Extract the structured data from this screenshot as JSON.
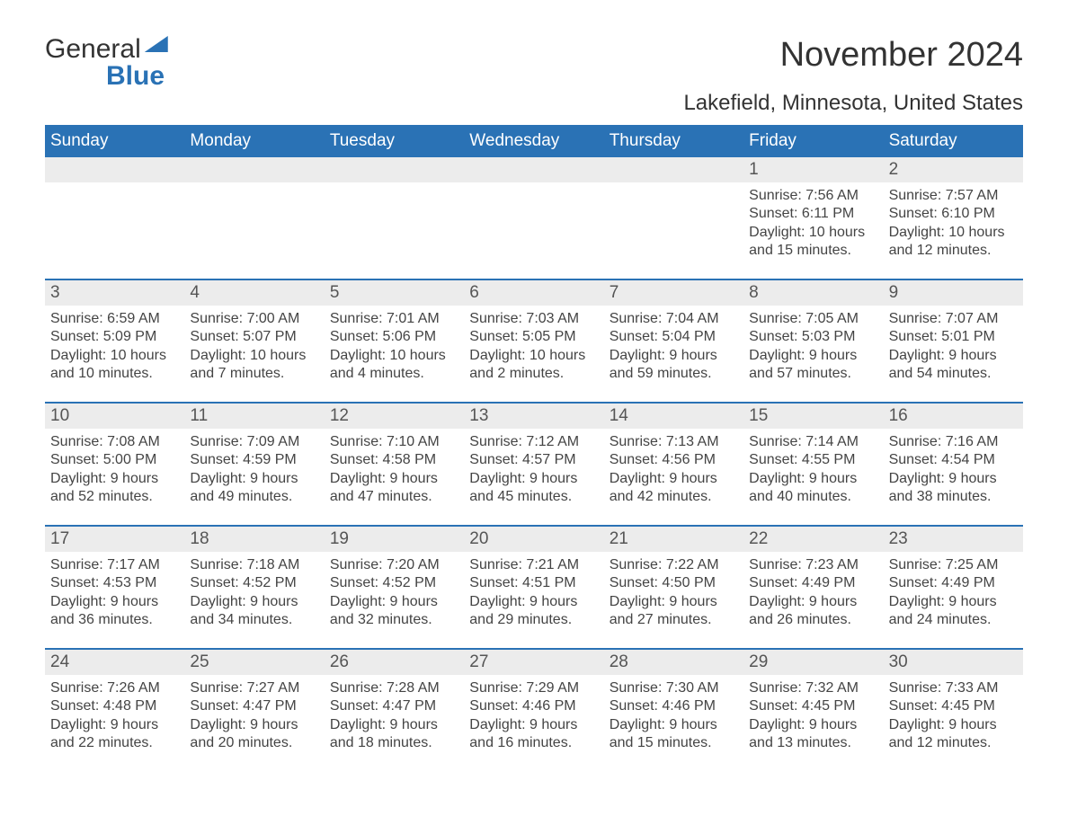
{
  "colors": {
    "header_bg": "#2a72b5",
    "header_text": "#ffffff",
    "daynum_bg": "#ececec",
    "week_border": "#2a72b5",
    "body_text": "#444444",
    "title_text": "#333333",
    "page_bg": "#ffffff",
    "logo_blue": "#2a72b5"
  },
  "typography": {
    "month_title_fontsize_pt": 29,
    "location_fontsize_pt": 18,
    "weekday_fontsize_pt": 14,
    "daynum_fontsize_pt": 14,
    "body_fontsize_pt": 12,
    "font_family": "Arial"
  },
  "logo": {
    "line1": "General",
    "line2": "Blue"
  },
  "title": "November 2024",
  "location": "Lakefield, Minnesota, United States",
  "weekdays": [
    "Sunday",
    "Monday",
    "Tuesday",
    "Wednesday",
    "Thursday",
    "Friday",
    "Saturday"
  ],
  "weeks": [
    [
      {
        "empty": true
      },
      {
        "empty": true
      },
      {
        "empty": true
      },
      {
        "empty": true
      },
      {
        "empty": true
      },
      {
        "num": "1",
        "sunrise": "Sunrise: 7:56 AM",
        "sunset": "Sunset: 6:11 PM",
        "day1": "Daylight: 10 hours",
        "day2": "and 15 minutes."
      },
      {
        "num": "2",
        "sunrise": "Sunrise: 7:57 AM",
        "sunset": "Sunset: 6:10 PM",
        "day1": "Daylight: 10 hours",
        "day2": "and 12 minutes."
      }
    ],
    [
      {
        "num": "3",
        "sunrise": "Sunrise: 6:59 AM",
        "sunset": "Sunset: 5:09 PM",
        "day1": "Daylight: 10 hours",
        "day2": "and 10 minutes."
      },
      {
        "num": "4",
        "sunrise": "Sunrise: 7:00 AM",
        "sunset": "Sunset: 5:07 PM",
        "day1": "Daylight: 10 hours",
        "day2": "and 7 minutes."
      },
      {
        "num": "5",
        "sunrise": "Sunrise: 7:01 AM",
        "sunset": "Sunset: 5:06 PM",
        "day1": "Daylight: 10 hours",
        "day2": "and 4 minutes."
      },
      {
        "num": "6",
        "sunrise": "Sunrise: 7:03 AM",
        "sunset": "Sunset: 5:05 PM",
        "day1": "Daylight: 10 hours",
        "day2": "and 2 minutes."
      },
      {
        "num": "7",
        "sunrise": "Sunrise: 7:04 AM",
        "sunset": "Sunset: 5:04 PM",
        "day1": "Daylight: 9 hours",
        "day2": "and 59 minutes."
      },
      {
        "num": "8",
        "sunrise": "Sunrise: 7:05 AM",
        "sunset": "Sunset: 5:03 PM",
        "day1": "Daylight: 9 hours",
        "day2": "and 57 minutes."
      },
      {
        "num": "9",
        "sunrise": "Sunrise: 7:07 AM",
        "sunset": "Sunset: 5:01 PM",
        "day1": "Daylight: 9 hours",
        "day2": "and 54 minutes."
      }
    ],
    [
      {
        "num": "10",
        "sunrise": "Sunrise: 7:08 AM",
        "sunset": "Sunset: 5:00 PM",
        "day1": "Daylight: 9 hours",
        "day2": "and 52 minutes."
      },
      {
        "num": "11",
        "sunrise": "Sunrise: 7:09 AM",
        "sunset": "Sunset: 4:59 PM",
        "day1": "Daylight: 9 hours",
        "day2": "and 49 minutes."
      },
      {
        "num": "12",
        "sunrise": "Sunrise: 7:10 AM",
        "sunset": "Sunset: 4:58 PM",
        "day1": "Daylight: 9 hours",
        "day2": "and 47 minutes."
      },
      {
        "num": "13",
        "sunrise": "Sunrise: 7:12 AM",
        "sunset": "Sunset: 4:57 PM",
        "day1": "Daylight: 9 hours",
        "day2": "and 45 minutes."
      },
      {
        "num": "14",
        "sunrise": "Sunrise: 7:13 AM",
        "sunset": "Sunset: 4:56 PM",
        "day1": "Daylight: 9 hours",
        "day2": "and 42 minutes."
      },
      {
        "num": "15",
        "sunrise": "Sunrise: 7:14 AM",
        "sunset": "Sunset: 4:55 PM",
        "day1": "Daylight: 9 hours",
        "day2": "and 40 minutes."
      },
      {
        "num": "16",
        "sunrise": "Sunrise: 7:16 AM",
        "sunset": "Sunset: 4:54 PM",
        "day1": "Daylight: 9 hours",
        "day2": "and 38 minutes."
      }
    ],
    [
      {
        "num": "17",
        "sunrise": "Sunrise: 7:17 AM",
        "sunset": "Sunset: 4:53 PM",
        "day1": "Daylight: 9 hours",
        "day2": "and 36 minutes."
      },
      {
        "num": "18",
        "sunrise": "Sunrise: 7:18 AM",
        "sunset": "Sunset: 4:52 PM",
        "day1": "Daylight: 9 hours",
        "day2": "and 34 minutes."
      },
      {
        "num": "19",
        "sunrise": "Sunrise: 7:20 AM",
        "sunset": "Sunset: 4:52 PM",
        "day1": "Daylight: 9 hours",
        "day2": "and 32 minutes."
      },
      {
        "num": "20",
        "sunrise": "Sunrise: 7:21 AM",
        "sunset": "Sunset: 4:51 PM",
        "day1": "Daylight: 9 hours",
        "day2": "and 29 minutes."
      },
      {
        "num": "21",
        "sunrise": "Sunrise: 7:22 AM",
        "sunset": "Sunset: 4:50 PM",
        "day1": "Daylight: 9 hours",
        "day2": "and 27 minutes."
      },
      {
        "num": "22",
        "sunrise": "Sunrise: 7:23 AM",
        "sunset": "Sunset: 4:49 PM",
        "day1": "Daylight: 9 hours",
        "day2": "and 26 minutes."
      },
      {
        "num": "23",
        "sunrise": "Sunrise: 7:25 AM",
        "sunset": "Sunset: 4:49 PM",
        "day1": "Daylight: 9 hours",
        "day2": "and 24 minutes."
      }
    ],
    [
      {
        "num": "24",
        "sunrise": "Sunrise: 7:26 AM",
        "sunset": "Sunset: 4:48 PM",
        "day1": "Daylight: 9 hours",
        "day2": "and 22 minutes."
      },
      {
        "num": "25",
        "sunrise": "Sunrise: 7:27 AM",
        "sunset": "Sunset: 4:47 PM",
        "day1": "Daylight: 9 hours",
        "day2": "and 20 minutes."
      },
      {
        "num": "26",
        "sunrise": "Sunrise: 7:28 AM",
        "sunset": "Sunset: 4:47 PM",
        "day1": "Daylight: 9 hours",
        "day2": "and 18 minutes."
      },
      {
        "num": "27",
        "sunrise": "Sunrise: 7:29 AM",
        "sunset": "Sunset: 4:46 PM",
        "day1": "Daylight: 9 hours",
        "day2": "and 16 minutes."
      },
      {
        "num": "28",
        "sunrise": "Sunrise: 7:30 AM",
        "sunset": "Sunset: 4:46 PM",
        "day1": "Daylight: 9 hours",
        "day2": "and 15 minutes."
      },
      {
        "num": "29",
        "sunrise": "Sunrise: 7:32 AM",
        "sunset": "Sunset: 4:45 PM",
        "day1": "Daylight: 9 hours",
        "day2": "and 13 minutes."
      },
      {
        "num": "30",
        "sunrise": "Sunrise: 7:33 AM",
        "sunset": "Sunset: 4:45 PM",
        "day1": "Daylight: 9 hours",
        "day2": "and 12 minutes."
      }
    ]
  ]
}
